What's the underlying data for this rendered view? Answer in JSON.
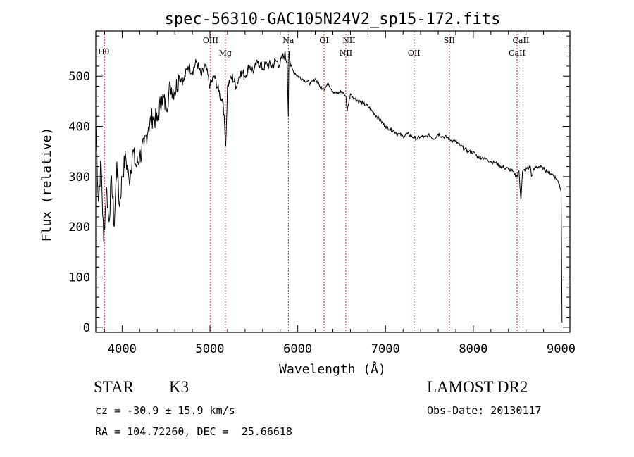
{
  "chart_data": {
    "type": "line",
    "title": "spec-56310-GAC105N24V2_sp15-172.fits",
    "xlabel": "Wavelength (Å)",
    "ylabel": "Flux (relative)",
    "xlim": [
      3700,
      9100
    ],
    "ylim": [
      -10,
      590
    ],
    "x_ticks": [
      4000,
      5000,
      6000,
      7000,
      8000,
      9000
    ],
    "y_ticks": [
      0,
      100,
      200,
      300,
      400,
      500
    ],
    "grid": false,
    "line_color": "#000000",
    "marker_color": "#cc2222",
    "series": [
      {
        "x": [
          3700,
          3730,
          3760,
          3790,
          3820,
          3850,
          3880,
          3910,
          3940,
          3970,
          4000,
          4040,
          4080,
          4120,
          4160,
          4200,
          4250,
          4300,
          4350,
          4400,
          4450,
          4500,
          4550,
          4600,
          4650,
          4700,
          4750,
          4800,
          4850,
          4900,
          4950,
          5000,
          5050,
          5100,
          5150,
          5180,
          5200,
          5250,
          5300,
          5350,
          5400,
          5450,
          5500,
          5550,
          5600,
          5650,
          5700,
          5750,
          5800,
          5850,
          5880,
          5893,
          5900,
          5920,
          5950,
          6000,
          6050,
          6100,
          6150,
          6200,
          6250,
          6300,
          6350,
          6400,
          6450,
          6500,
          6550,
          6563,
          6600,
          6650,
          6700,
          6750,
          6800,
          6850,
          6900,
          6950,
          7000,
          7050,
          7100,
          7150,
          7200,
          7250,
          7300,
          7350,
          7400,
          7450,
          7500,
          7550,
          7600,
          7650,
          7700,
          7750,
          7800,
          7850,
          7900,
          7950,
          8000,
          8050,
          8100,
          8150,
          8200,
          8250,
          8300,
          8350,
          8400,
          8450,
          8498,
          8520,
          8542,
          8560,
          8600,
          8650,
          8662,
          8700,
          8750,
          8800,
          8850,
          8900,
          8950,
          8980,
          9000,
          9010
        ],
        "values": [
          410,
          250,
          330,
          170,
          280,
          210,
          300,
          200,
          330,
          240,
          300,
          340,
          290,
          350,
          320,
          340,
          360,
          400,
          420,
          410,
          460,
          440,
          480,
          470,
          500,
          490,
          520,
          510,
          530,
          500,
          520,
          480,
          500,
          470,
          450,
          360,
          480,
          500,
          480,
          510,
          500,
          520,
          510,
          530,
          515,
          525,
          520,
          530,
          525,
          545,
          530,
          420,
          550,
          520,
          510,
          500,
          495,
          490,
          485,
          495,
          480,
          475,
          485,
          470,
          465,
          470,
          460,
          430,
          465,
          455,
          450,
          445,
          440,
          430,
          420,
          410,
          400,
          395,
          390,
          385,
          380,
          385,
          380,
          375,
          380,
          378,
          382,
          375,
          385,
          380,
          378,
          372,
          370,
          362,
          355,
          350,
          348,
          340,
          338,
          335,
          330,
          328,
          322,
          318,
          315,
          310,
          300,
          312,
          252,
          310,
          315,
          320,
          300,
          318,
          320,
          316,
          310,
          305,
          295,
          285,
          270,
          10
        ]
      }
    ],
    "lines": [
      {
        "label": "Hθ",
        "x": 3798
      },
      {
        "label": "OIII",
        "x": 5007
      },
      {
        "label": "Mg",
        "x": 5175
      },
      {
        "label": "Na",
        "x": 5893
      },
      {
        "label": "OI",
        "x": 6300
      },
      {
        "label": "NII",
        "x": 6548
      },
      {
        "label": "NII",
        "x": 6584
      },
      {
        "label": "OII",
        "x": 7325
      },
      {
        "label": "SII",
        "x": 7727
      },
      {
        "label": "CaII",
        "x": 8498
      },
      {
        "label": "CaII",
        "x": 8542
      }
    ]
  },
  "info": {
    "object_class": "STAR",
    "subclass": "K3",
    "cz": "cz = -30.9 ± 15.9 km/s",
    "radec": "RA = 104.72260, DEC =  25.66618",
    "survey": "LAMOST DR2",
    "obs_date": "Obs-Date: 20130117"
  }
}
